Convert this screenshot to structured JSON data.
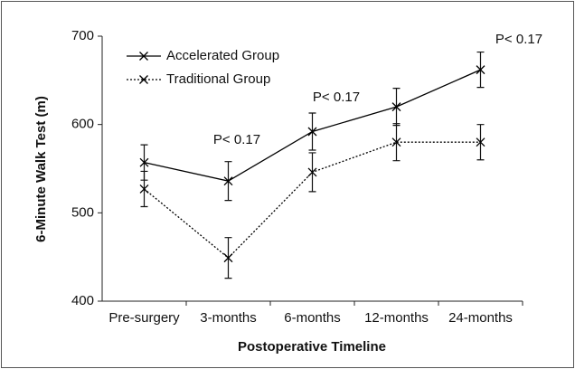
{
  "chart_data": {
    "type": "line",
    "x_label": "Postoperative Timeline",
    "y_label": "6-Minute Walk Test (m)",
    "categories": [
      "Pre-surgery",
      "3-months",
      "6-months",
      "12-months",
      "24-months"
    ],
    "series": [
      {
        "name": "Accelerated Group",
        "color": "#000000",
        "line_style": "solid",
        "values": [
          557,
          536,
          592,
          620,
          662
        ],
        "errors": [
          20,
          22,
          21,
          21,
          20
        ]
      },
      {
        "name": "Traditional Group",
        "color": "#000000",
        "line_style": "dotted",
        "values": [
          527,
          449,
          546,
          580,
          580
        ],
        "errors": [
          20,
          23,
          22,
          21,
          20
        ]
      }
    ],
    "annotations": [
      "P< 0.17",
      "P< 0.17",
      "P< 0.17"
    ],
    "ylim": [
      400,
      700
    ],
    "yticks": [
      400,
      500,
      600,
      700
    ],
    "grid": false,
    "legend": "upper-left"
  }
}
